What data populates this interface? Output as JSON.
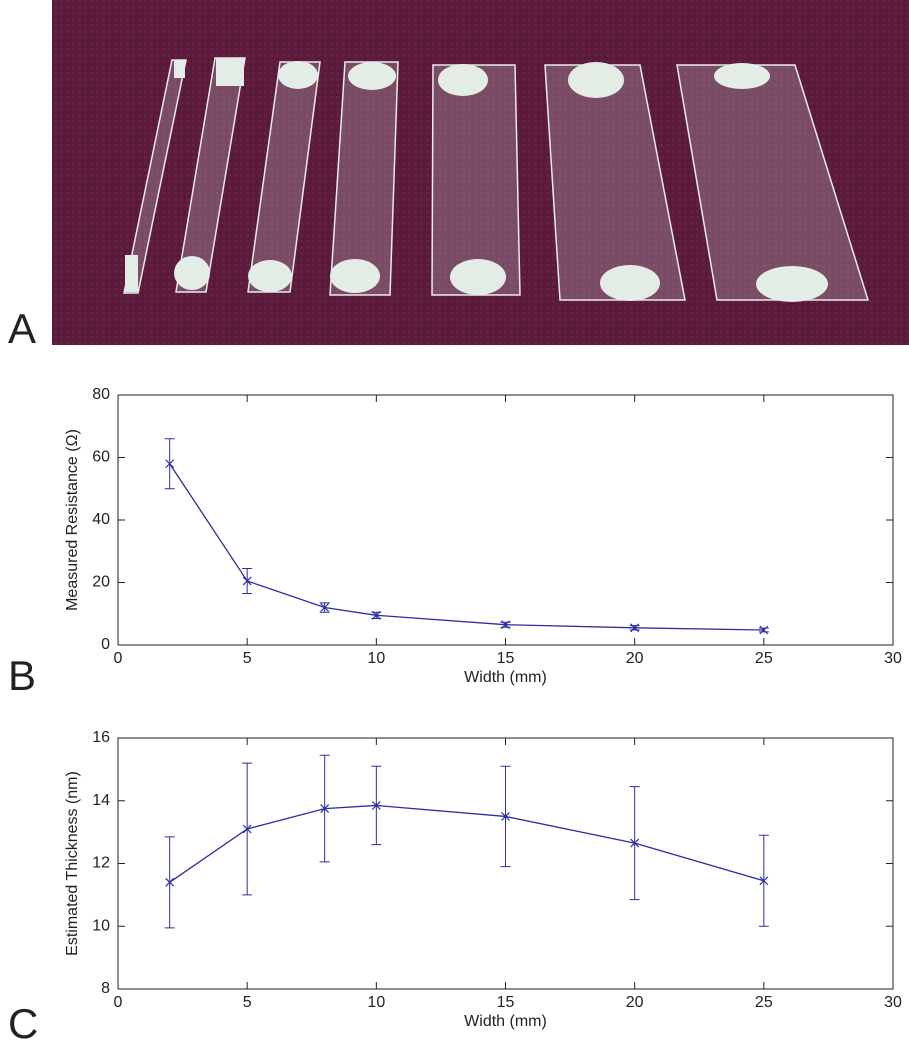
{
  "panel_labels": [
    "A",
    "B",
    "C"
  ],
  "chart_data": [
    {
      "type": "line",
      "xlabel": "Width (mm)",
      "ylabel": "Measured Resistance (Ω)",
      "x": [
        2,
        5,
        8,
        10,
        15,
        20,
        25
      ],
      "values": [
        58,
        20.5,
        12,
        9.5,
        6.5,
        5.5,
        4.8
      ],
      "errors": [
        8,
        4,
        1.5,
        1,
        0.8,
        0.7,
        0.6
      ],
      "color": "#2b2f9e",
      "xlim": [
        0,
        30
      ],
      "xticks": [
        0,
        5,
        10,
        15,
        20,
        25,
        30
      ],
      "ylim": [
        0,
        80
      ],
      "yticks": [
        0,
        20,
        40,
        60,
        80
      ]
    },
    {
      "type": "line",
      "xlabel": "Width (mm)",
      "ylabel": "Estimated Thickness (nm)",
      "x": [
        2,
        5,
        8,
        10,
        15,
        20,
        25
      ],
      "values": [
        11.4,
        13.1,
        13.75,
        13.85,
        13.5,
        12.65,
        11.45
      ],
      "errors": [
        1.45,
        2.1,
        1.7,
        1.25,
        1.6,
        1.8,
        1.45
      ],
      "color": "#2b2f9e",
      "xlim": [
        0,
        30
      ],
      "xticks": [
        0,
        5,
        10,
        15,
        20,
        25,
        30
      ],
      "ylim": [
        8,
        16
      ],
      "yticks": [
        8,
        10,
        12,
        14,
        16
      ]
    }
  ]
}
